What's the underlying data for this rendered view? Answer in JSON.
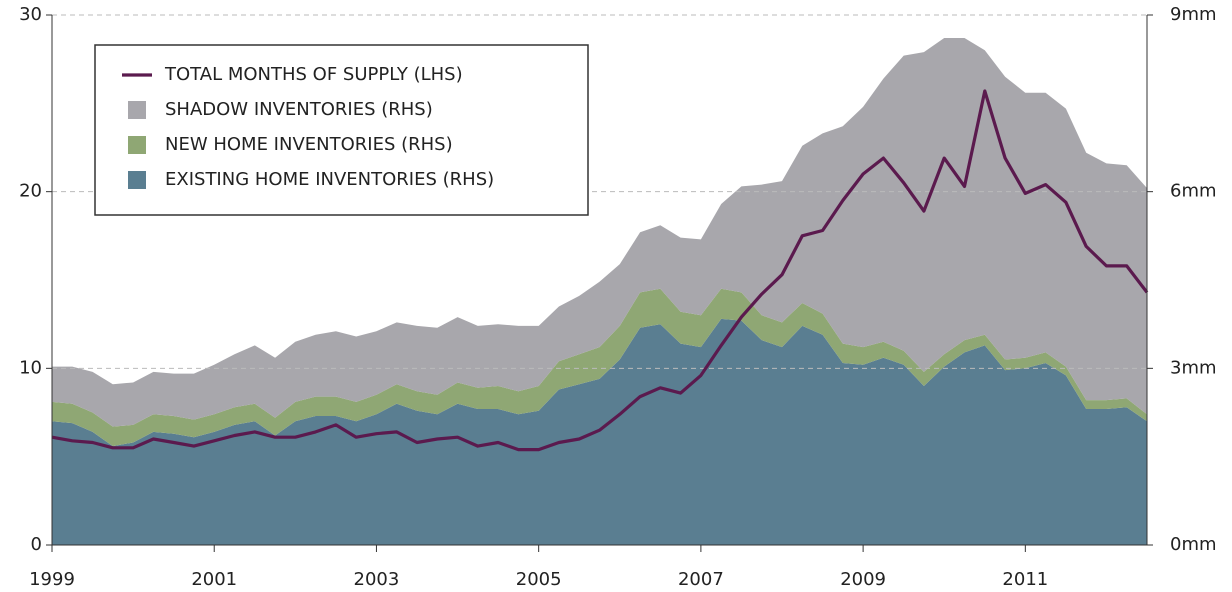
{
  "chart_data": {
    "type": "stacked-area-line",
    "x": [
      1999,
      1999.25,
      1999.5,
      1999.75,
      2000,
      2000.25,
      2000.5,
      2000.75,
      2001,
      2001.25,
      2001.5,
      2001.75,
      2002,
      2002.25,
      2002.5,
      2002.75,
      2003,
      2003.25,
      2003.5,
      2003.75,
      2004,
      2004.25,
      2004.5,
      2004.75,
      2005,
      2005.25,
      2005.5,
      2005.75,
      2006,
      2006.25,
      2006.5,
      2006.75,
      2007,
      2007.25,
      2007.5,
      2007.75,
      2008,
      2008.25,
      2008.5,
      2008.75,
      2009,
      2009.25,
      2009.5,
      2009.75,
      2010,
      2010.25,
      2010.5,
      2010.75,
      2011,
      2011.25,
      2011.5,
      2011.75,
      2012,
      2012.25,
      2012.5
    ],
    "series": [
      {
        "name": "TOTAL MONTHS OF SUPPLY (LHS)",
        "color": "#5b1a4e",
        "kind": "line",
        "axis": "y",
        "values": [
          6.1,
          5.9,
          5.8,
          5.5,
          5.5,
          6.0,
          5.8,
          5.6,
          5.9,
          6.2,
          6.4,
          6.1,
          6.1,
          6.4,
          6.8,
          6.1,
          6.3,
          6.4,
          5.8,
          6.0,
          6.1,
          5.6,
          5.8,
          5.4,
          5.4,
          5.8,
          6.0,
          6.5,
          7.4,
          8.4,
          8.9,
          8.6,
          9.6,
          11.3,
          12.9,
          14.2,
          15.3,
          17.5,
          17.8,
          19.5,
          21.0,
          21.9,
          20.5,
          18.9,
          21.9,
          20.3,
          25.7,
          21.9,
          19.9,
          20.4,
          19.4,
          16.9,
          15.8,
          15.8,
          14.3
        ]
      },
      {
        "name": "SHADOW INVENTORIES (RHS)",
        "color": "#a8a7ac",
        "kind": "area",
        "axis": "y2",
        "values": [
          0.6,
          0.63,
          0.69,
          0.72,
          0.72,
          0.72,
          0.72,
          0.78,
          0.84,
          0.9,
          0.99,
          1.02,
          1.02,
          1.05,
          1.11,
          1.11,
          1.08,
          1.05,
          1.11,
          1.14,
          1.11,
          1.05,
          1.05,
          1.11,
          1.02,
          0.93,
          0.99,
          1.11,
          1.05,
          1.02,
          1.08,
          1.26,
          1.29,
          1.44,
          1.8,
          2.22,
          2.4,
          2.67,
          3.06,
          3.69,
          4.08,
          4.47,
          5.01,
          5.43,
          5.37,
          5.13,
          4.83,
          4.8,
          4.5,
          4.41,
          4.38,
          4.2,
          4.02,
          3.96,
          3.84
        ]
      },
      {
        "name": "NEW HOME INVENTORIES (RHS)",
        "color": "#8fa774",
        "kind": "area",
        "axis": "y2",
        "values": [
          0.33,
          0.33,
          0.33,
          0.33,
          0.3,
          0.3,
          0.3,
          0.3,
          0.3,
          0.3,
          0.3,
          0.3,
          0.33,
          0.33,
          0.33,
          0.33,
          0.33,
          0.33,
          0.33,
          0.33,
          0.36,
          0.36,
          0.39,
          0.39,
          0.42,
          0.48,
          0.51,
          0.54,
          0.57,
          0.6,
          0.6,
          0.54,
          0.54,
          0.51,
          0.48,
          0.42,
          0.42,
          0.39,
          0.36,
          0.33,
          0.3,
          0.27,
          0.24,
          0.24,
          0.21,
          0.21,
          0.18,
          0.18,
          0.18,
          0.18,
          0.15,
          0.15,
          0.15,
          0.15,
          0.12
        ]
      },
      {
        "name": "EXISTING HOME INVENTORIES (RHS)",
        "color": "#5a7e91",
        "kind": "area",
        "axis": "y2",
        "values": [
          2.1,
          2.07,
          1.92,
          1.68,
          1.74,
          1.92,
          1.89,
          1.83,
          1.92,
          2.04,
          2.1,
          1.86,
          2.1,
          2.19,
          2.19,
          2.1,
          2.22,
          2.4,
          2.28,
          2.22,
          2.4,
          2.31,
          2.31,
          2.22,
          2.28,
          2.64,
          2.73,
          2.82,
          3.15,
          3.69,
          3.75,
          3.42,
          3.36,
          3.84,
          3.81,
          3.48,
          3.36,
          3.72,
          3.57,
          3.09,
          3.06,
          3.18,
          3.06,
          2.7,
          3.03,
          3.27,
          3.39,
          2.97,
          3.0,
          3.09,
          2.88,
          2.31,
          2.31,
          2.34,
          2.1
        ]
      }
    ],
    "xlim": [
      1999,
      2012.5
    ],
    "xticks": [
      1999,
      2001,
      2003,
      2005,
      2007,
      2009,
      2011
    ],
    "ylim": [
      0,
      30
    ],
    "yticks": [
      0,
      10,
      20,
      30
    ],
    "y2lim": [
      0,
      9
    ],
    "y2ticks": [
      {
        "value": 0,
        "label": "0mm"
      },
      {
        "value": 3,
        "label": "3mm"
      },
      {
        "value": 6,
        "label": "6mm"
      },
      {
        "value": 9,
        "label": "9mm"
      }
    ],
    "grid": true,
    "legend": "upper-left"
  }
}
